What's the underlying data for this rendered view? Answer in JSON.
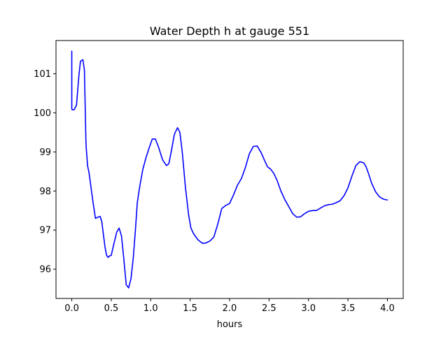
{
  "chart_data": {
    "type": "line",
    "title": "Water Depth h at gauge 551",
    "xlabel": "hours",
    "ylabel": "",
    "xlim": [
      -0.2,
      4.2
    ],
    "ylim": [
      95.25,
      101.85
    ],
    "xticks": [
      0.0,
      0.5,
      1.0,
      1.5,
      2.0,
      2.5,
      3.0,
      3.5,
      4.0
    ],
    "xtick_labels": [
      "0.0",
      "0.5",
      "1.0",
      "1.5",
      "2.0",
      "2.5",
      "3.0",
      "3.5",
      "4.0"
    ],
    "yticks": [
      96,
      97,
      98,
      99,
      100,
      101
    ],
    "ytick_labels": [
      "96",
      "97",
      "98",
      "99",
      "100",
      "101"
    ],
    "grid": false,
    "legend": "none",
    "series": [
      {
        "color": "#0000ff",
        "x": [
          0.0,
          0.0,
          0.005,
          0.03,
          0.06,
          0.09,
          0.11,
          0.14,
          0.16,
          0.18,
          0.2,
          0.22,
          0.24,
          0.27,
          0.3,
          0.33,
          0.36,
          0.38,
          0.4,
          0.42,
          0.44,
          0.46,
          0.48,
          0.5,
          0.53,
          0.57,
          0.6,
          0.63,
          0.66,
          0.69,
          0.72,
          0.75,
          0.78,
          0.81,
          0.83,
          0.86,
          0.9,
          0.94,
          0.98,
          1.02,
          1.06,
          1.1,
          1.15,
          1.2,
          1.23,
          1.26,
          1.3,
          1.34,
          1.37,
          1.4,
          1.44,
          1.48,
          1.51,
          1.54,
          1.57,
          1.6,
          1.63,
          1.66,
          1.7,
          1.75,
          1.8,
          1.85,
          1.9,
          1.95,
          2.0,
          2.05,
          2.1,
          2.15,
          2.2,
          2.25,
          2.3,
          2.35,
          2.4,
          2.45,
          2.48,
          2.52,
          2.56,
          2.6,
          2.65,
          2.7,
          2.75,
          2.8,
          2.85,
          2.9,
          2.95,
          3.0,
          3.05,
          3.1,
          3.15,
          3.2,
          3.25,
          3.3,
          3.35,
          3.4,
          3.45,
          3.5,
          3.55,
          3.6,
          3.65,
          3.7,
          3.73,
          3.76,
          3.8,
          3.85,
          3.9,
          3.95,
          4.0
        ],
        "values": [
          101.58,
          100.1,
          100.08,
          100.08,
          100.2,
          100.95,
          101.32,
          101.36,
          101.1,
          99.2,
          98.65,
          98.45,
          98.15,
          97.7,
          97.3,
          97.33,
          97.35,
          97.22,
          96.9,
          96.58,
          96.36,
          96.3,
          96.34,
          96.35,
          96.62,
          96.95,
          97.05,
          96.85,
          96.25,
          95.6,
          95.52,
          95.75,
          96.3,
          97.1,
          97.7,
          98.1,
          98.55,
          98.85,
          99.1,
          99.33,
          99.33,
          99.12,
          98.8,
          98.65,
          98.7,
          99.0,
          99.45,
          99.62,
          99.5,
          99.0,
          98.1,
          97.4,
          97.05,
          96.92,
          96.83,
          96.75,
          96.7,
          96.66,
          96.67,
          96.72,
          96.82,
          97.15,
          97.55,
          97.63,
          97.68,
          97.9,
          98.15,
          98.32,
          98.6,
          98.95,
          99.14,
          99.15,
          98.98,
          98.75,
          98.62,
          98.56,
          98.45,
          98.28,
          98.0,
          97.78,
          97.6,
          97.42,
          97.33,
          97.34,
          97.42,
          97.48,
          97.5,
          97.5,
          97.56,
          97.62,
          97.65,
          97.66,
          97.7,
          97.75,
          97.88,
          98.08,
          98.38,
          98.65,
          98.75,
          98.72,
          98.62,
          98.45,
          98.2,
          97.98,
          97.85,
          97.79,
          97.77
        ]
      }
    ]
  }
}
